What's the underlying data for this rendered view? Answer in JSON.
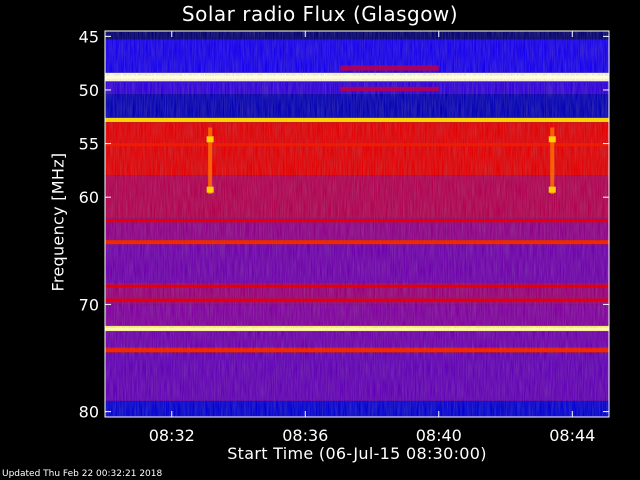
{
  "chart_data": {
    "type": "heatmap",
    "title": "Solar radio Flux (Glasgow)",
    "xlabel": "Start Time (06-Jul-15 08:30:00)",
    "ylabel": "Frequency [MHz]",
    "x_unit": "time",
    "x_tick_labels": [
      "08:32",
      "08:36",
      "08:40",
      "08:44"
    ],
    "x_tick_values_minutes": [
      2,
      6,
      10,
      14
    ],
    "xlim_minutes": [
      0,
      15.1
    ],
    "y_tick_labels": [
      "45",
      "50",
      "55",
      "60",
      "70",
      "80"
    ],
    "y_tick_values": [
      45,
      50,
      55,
      60,
      70,
      80
    ],
    "ylim": [
      44.5,
      80.5
    ],
    "y_reversed": true,
    "colors": {
      "background": "#000000",
      "low": "#0000ff",
      "mid": "#ff0000",
      "high": "#ffff00",
      "max": "#ffffff"
    },
    "bands": [
      {
        "from": 44.5,
        "to": 45.3,
        "intensity": 0.05
      },
      {
        "from": 45.3,
        "to": 48.4,
        "intensity": 0.18
      },
      {
        "from": 48.4,
        "to": 49.2,
        "intensity": 1.0
      },
      {
        "from": 49.2,
        "to": 50.4,
        "intensity": 0.22
      },
      {
        "from": 50.4,
        "to": 52.6,
        "intensity": 0.1
      },
      {
        "from": 52.6,
        "to": 53.0,
        "intensity": 0.9
      },
      {
        "from": 53.0,
        "to": 58.0,
        "intensity": 0.55
      },
      {
        "from": 58.0,
        "to": 62.0,
        "intensity": 0.45
      },
      {
        "from": 62.0,
        "to": 64.0,
        "intensity": 0.38
      },
      {
        "from": 64.0,
        "to": 64.4,
        "intensity": 0.62
      },
      {
        "from": 64.4,
        "to": 68.0,
        "intensity": 0.32
      },
      {
        "from": 68.0,
        "to": 70.0,
        "intensity": 0.4
      },
      {
        "from": 70.0,
        "to": 72.0,
        "intensity": 0.35
      },
      {
        "from": 72.0,
        "to": 72.5,
        "intensity": 0.95
      },
      {
        "from": 72.5,
        "to": 74.0,
        "intensity": 0.32
      },
      {
        "from": 74.0,
        "to": 74.5,
        "intensity": 0.6
      },
      {
        "from": 74.5,
        "to": 79.0,
        "intensity": 0.3
      },
      {
        "from": 79.0,
        "to": 80.5,
        "intensity": 0.12
      }
    ],
    "bright_lines": [
      {
        "freq": 48.8,
        "intensity": 1.0
      },
      {
        "freq": 52.8,
        "intensity": 0.88
      },
      {
        "freq": 55.1,
        "intensity": 0.62
      },
      {
        "freq": 62.2,
        "intensity": 0.55
      },
      {
        "freq": 64.2,
        "intensity": 0.65
      },
      {
        "freq": 68.3,
        "intensity": 0.55
      },
      {
        "freq": 69.6,
        "intensity": 0.55
      },
      {
        "freq": 72.3,
        "intensity": 0.98
      },
      {
        "freq": 74.3,
        "intensity": 0.65
      }
    ],
    "vertical_streaks": [
      {
        "time_minutes": 3.15,
        "from": 53.5,
        "to": 59.7,
        "intensity": 0.78
      },
      {
        "time_minutes": 13.4,
        "from": 53.5,
        "to": 59.7,
        "intensity": 0.78
      }
    ],
    "hot_spots": [
      {
        "time_minutes": 3.15,
        "freq": 54.6,
        "intensity": 0.88
      },
      {
        "time_minutes": 3.15,
        "freq": 59.3,
        "intensity": 0.88
      },
      {
        "time_minutes": 13.4,
        "freq": 54.6,
        "intensity": 0.88
      },
      {
        "time_minutes": 13.4,
        "freq": 59.3,
        "intensity": 0.88
      }
    ],
    "patches": [
      {
        "t_from": 7.05,
        "t_to": 10.0,
        "f_from": 47.7,
        "f_to": 48.2,
        "intensity": 0.45
      },
      {
        "t_from": 7.05,
        "t_to": 10.0,
        "f_from": 49.7,
        "f_to": 50.1,
        "intensity": 0.45
      }
    ]
  },
  "footer_text": "Updated Thu Feb 22 00:32:21 2018"
}
